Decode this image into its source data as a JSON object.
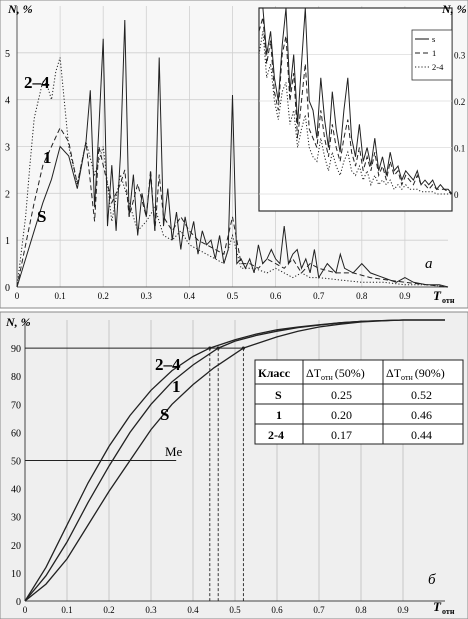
{
  "colors": {
    "panel_a_bg": "#f7f7f7",
    "panel_b_bg": "#efefef",
    "grid_a": "#d0d0d0",
    "grid_b": "#bdbdbd",
    "line": "#222222",
    "border": "#888888"
  },
  "chart_data": [
    {
      "type": "line",
      "panel_label": "a",
      "ylabel": "N, %",
      "ylabel_right": "N, %",
      "xlabel": "T",
      "xlabel_sub": "отн",
      "xlim": [
        0,
        1.0
      ],
      "ylim": [
        0,
        6
      ],
      "x_ticks": [
        "0",
        "0.1",
        "0.2",
        "0.3",
        "0.4",
        "0.5",
        "0.6",
        "0.7",
        "0.8",
        "0.9"
      ],
      "y_ticks": [
        "0",
        "1",
        "2",
        "3",
        "4",
        "5"
      ],
      "grid": true,
      "series_labels_on_chart": [
        "2–4",
        "1",
        "S"
      ],
      "series": [
        {
          "name": "S",
          "style": "solid",
          "x": [
            0,
            0.02,
            0.04,
            0.06,
            0.08,
            0.1,
            0.12,
            0.14,
            0.16,
            0.17,
            0.18,
            0.19,
            0.2,
            0.21,
            0.22,
            0.23,
            0.24,
            0.25,
            0.26,
            0.27,
            0.28,
            0.29,
            0.3,
            0.31,
            0.32,
            0.33,
            0.34,
            0.35,
            0.36,
            0.37,
            0.38,
            0.39,
            0.4,
            0.41,
            0.42,
            0.43,
            0.44,
            0.45,
            0.46,
            0.47,
            0.48,
            0.49,
            0.5,
            0.51,
            0.52,
            0.53,
            0.54,
            0.55,
            0.56,
            0.57,
            0.58,
            0.59,
            0.6,
            0.61,
            0.62,
            0.63,
            0.64,
            0.65,
            0.66,
            0.67,
            0.68,
            0.69,
            0.7,
            0.72,
            0.74,
            0.75,
            0.76,
            0.78,
            0.8,
            0.82,
            0.85,
            0.88,
            0.9,
            0.92,
            0.95,
            0.98,
            1.0
          ],
          "y": [
            0,
            0.6,
            1.2,
            1.8,
            2.3,
            3.0,
            2.8,
            2.1,
            3.1,
            4.2,
            1.7,
            3.4,
            5.3,
            1.3,
            2.6,
            1.2,
            2.8,
            5.7,
            1.5,
            2.4,
            1.1,
            2.0,
            1.5,
            2.4,
            1.2,
            4.9,
            1.3,
            2.1,
            1.0,
            1.6,
            0.8,
            1.5,
            1.0,
            1.4,
            0.7,
            1.2,
            0.9,
            1.0,
            0.6,
            1.1,
            0.5,
            0.8,
            4.1,
            0.5,
            0.6,
            0.4,
            0.6,
            0.3,
            0.9,
            0.5,
            0.6,
            0.8,
            0.6,
            0.5,
            1.3,
            0.5,
            0.7,
            0.8,
            0.4,
            0.6,
            0.3,
            0.8,
            0.2,
            0.5,
            0.3,
            0.7,
            0.4,
            0.3,
            0.5,
            0.3,
            0.2,
            0.1,
            0.2,
            0.1,
            0.05,
            0.05,
            0
          ]
        },
        {
          "name": "1",
          "style": "dashed",
          "x": [
            0,
            0.02,
            0.04,
            0.06,
            0.08,
            0.1,
            0.12,
            0.14,
            0.16,
            0.18,
            0.19,
            0.2,
            0.22,
            0.24,
            0.25,
            0.26,
            0.28,
            0.3,
            0.31,
            0.32,
            0.33,
            0.34,
            0.36,
            0.38,
            0.4,
            0.42,
            0.44,
            0.46,
            0.48,
            0.5,
            0.52,
            0.54,
            0.56,
            0.58,
            0.6,
            0.62,
            0.64,
            0.66,
            0.68,
            0.7,
            0.74,
            0.78,
            0.82,
            0.86,
            0.9,
            0.95,
            1.0
          ],
          "y": [
            0,
            0.9,
            1.8,
            2.6,
            3.0,
            3.4,
            3.1,
            2.2,
            3.1,
            1.4,
            3.0,
            2.6,
            1.8,
            2.2,
            2.5,
            1.5,
            2.2,
            1.5,
            2.5,
            1.2,
            2.4,
            1.5,
            1.2,
            1.5,
            1.2,
            1.0,
            0.9,
            0.8,
            0.7,
            1.5,
            0.5,
            0.5,
            0.4,
            0.6,
            0.5,
            0.4,
            0.6,
            0.3,
            0.5,
            0.4,
            0.3,
            0.3,
            0.2,
            0.15,
            0.1,
            0.05,
            0
          ]
        },
        {
          "name": "2-4",
          "style": "dotted",
          "x": [
            0,
            0.02,
            0.03,
            0.04,
            0.05,
            0.06,
            0.07,
            0.08,
            0.09,
            0.1,
            0.12,
            0.14,
            0.16,
            0.18,
            0.2,
            0.22,
            0.24,
            0.26,
            0.28,
            0.3,
            0.32,
            0.34,
            0.36,
            0.38,
            0.4,
            0.42,
            0.44,
            0.46,
            0.48,
            0.5,
            0.52,
            0.55,
            0.58,
            0.6,
            0.62,
            0.64,
            0.66,
            0.68,
            0.7,
            0.75,
            0.8,
            0.85,
            0.9,
            0.95,
            1.0
          ],
          "y": [
            0,
            1.5,
            2.6,
            3.6,
            4.0,
            4.4,
            4.3,
            4.0,
            4.6,
            4.9,
            3.0,
            2.2,
            3.1,
            2.4,
            3.0,
            1.4,
            2.4,
            1.8,
            1.2,
            1.4,
            1.7,
            1.1,
            1.0,
            1.2,
            0.9,
            0.8,
            0.7,
            0.6,
            0.5,
            1.1,
            0.4,
            0.4,
            0.3,
            0.4,
            0.3,
            0.2,
            0.3,
            0.2,
            0.2,
            0.15,
            0.1,
            0.1,
            0.05,
            0.05,
            0
          ]
        }
      ],
      "inset": {
        "ylabel": "N, %",
        "y_ticks": [
          "0",
          "0.1",
          "0.2",
          "0.3"
        ],
        "ylim": [
          0,
          0.4
        ],
        "legend": [
          "s",
          "1",
          "2-4"
        ],
        "legend_position": "top-right",
        "series": [
          {
            "name": "s",
            "style": "solid",
            "x": [
              0,
              0.02,
              0.04,
              0.06,
              0.08,
              0.1,
              0.12,
              0.14,
              0.16,
              0.18,
              0.2,
              0.22,
              0.24,
              0.26,
              0.28,
              0.3,
              0.32,
              0.34,
              0.36,
              0.38,
              0.4,
              0.42,
              0.44,
              0.46,
              0.48,
              0.5,
              0.52,
              0.54,
              0.56,
              0.58,
              0.6,
              0.62,
              0.64,
              0.66,
              0.68,
              0.7,
              0.72,
              0.74,
              0.76,
              0.78,
              0.8,
              0.82,
              0.84,
              0.86,
              0.88,
              0.9,
              0.92,
              0.94,
              0.96,
              0.98,
              1.0
            ],
            "y": [
              0.4,
              0.4,
              0.3,
              0.35,
              0.25,
              0.2,
              0.32,
              0.4,
              0.22,
              0.3,
              0.15,
              0.28,
              0.4,
              0.2,
              0.18,
              0.12,
              0.25,
              0.16,
              0.1,
              0.22,
              0.14,
              0.09,
              0.18,
              0.25,
              0.12,
              0.08,
              0.15,
              0.07,
              0.1,
              0.06,
              0.12,
              0.05,
              0.08,
              0.04,
              0.09,
              0.05,
              0.06,
              0.03,
              0.05,
              0.04,
              0.03,
              0.05,
              0.02,
              0.03,
              0.02,
              0.03,
              0.01,
              0.02,
              0.01,
              0.01,
              0
            ]
          },
          {
            "name": "1",
            "style": "dashed",
            "x": [
              0,
              0.02,
              0.04,
              0.06,
              0.08,
              0.1,
              0.12,
              0.14,
              0.16,
              0.18,
              0.2,
              0.22,
              0.24,
              0.26,
              0.28,
              0.3,
              0.32,
              0.34,
              0.36,
              0.38,
              0.4,
              0.42,
              0.44,
              0.46,
              0.48,
              0.5,
              0.52,
              0.54,
              0.56,
              0.58,
              0.6,
              0.62,
              0.64,
              0.66,
              0.68,
              0.7,
              0.72,
              0.74,
              0.76,
              0.78,
              0.8,
              0.82,
              0.84,
              0.86,
              0.88,
              0.9,
              0.92,
              0.94,
              0.96,
              0.98,
              1.0
            ],
            "y": [
              0.35,
              0.38,
              0.28,
              0.33,
              0.22,
              0.18,
              0.3,
              0.34,
              0.2,
              0.26,
              0.12,
              0.2,
              0.28,
              0.14,
              0.12,
              0.1,
              0.18,
              0.12,
              0.08,
              0.15,
              0.1,
              0.07,
              0.12,
              0.16,
              0.09,
              0.06,
              0.1,
              0.05,
              0.08,
              0.05,
              0.09,
              0.04,
              0.06,
              0.03,
              0.07,
              0.04,
              0.05,
              0.02,
              0.04,
              0.03,
              0.02,
              0.04,
              0.02,
              0.02,
              0.01,
              0.02,
              0.01,
              0.01,
              0.01,
              0.005,
              0
            ]
          },
          {
            "name": "2-4",
            "style": "dotted",
            "x": [
              0,
              0.02,
              0.04,
              0.06,
              0.08,
              0.1,
              0.12,
              0.14,
              0.16,
              0.18,
              0.2,
              0.22,
              0.24,
              0.26,
              0.28,
              0.3,
              0.32,
              0.34,
              0.36,
              0.38,
              0.4,
              0.42,
              0.44,
              0.46,
              0.48,
              0.5,
              0.52,
              0.54,
              0.56,
              0.58,
              0.6,
              0.62,
              0.64,
              0.66,
              0.68,
              0.7,
              0.72,
              0.74,
              0.76,
              0.78,
              0.8,
              0.82,
              0.84,
              0.86,
              0.88,
              0.9,
              0.92,
              0.94,
              0.96,
              0.98,
              1.0
            ],
            "y": [
              0.3,
              0.35,
              0.25,
              0.28,
              0.2,
              0.16,
              0.22,
              0.24,
              0.15,
              0.18,
              0.1,
              0.14,
              0.17,
              0.1,
              0.08,
              0.07,
              0.12,
              0.08,
              0.05,
              0.09,
              0.06,
              0.04,
              0.07,
              0.09,
              0.05,
              0.04,
              0.06,
              0.03,
              0.05,
              0.02,
              0.04,
              0.02,
              0.03,
              0.02,
              0.03,
              0.01,
              0.02,
              0.01,
              0.02,
              0.01,
              0.01,
              0.01,
              0.005,
              0.005,
              0.005,
              0.005,
              0,
              0,
              0,
              0,
              0
            ]
          }
        ]
      }
    },
    {
      "type": "line",
      "panel_label": "б",
      "ylabel": "N, %",
      "xlabel": "T",
      "xlabel_sub": "отн",
      "xlim": [
        0,
        1.0
      ],
      "ylim": [
        0,
        100
      ],
      "x_ticks": [
        "0",
        "0.1",
        "0.2",
        "0.3",
        "0.4",
        "0.5",
        "0.6",
        "0.7",
        "0.8",
        "0.9"
      ],
      "y_ticks": [
        "0",
        "10",
        "20",
        "30",
        "40",
        "50",
        "60",
        "70",
        "80",
        "90"
      ],
      "grid": true,
      "reference_lines": {
        "y90_label": "",
        "median_label": "Me",
        "median_y": 50,
        "top_y": 90
      },
      "series_labels_on_chart": [
        "2–4",
        "1",
        "S"
      ],
      "series": [
        {
          "name": "2-4",
          "x": [
            0,
            0.05,
            0.1,
            0.15,
            0.2,
            0.25,
            0.3,
            0.35,
            0.4,
            0.44,
            0.5,
            0.55,
            0.6,
            0.65,
            0.7,
            0.75,
            0.8,
            0.85,
            0.9,
            0.95,
            1.0
          ],
          "y": [
            0,
            12,
            27,
            42,
            55,
            66,
            75,
            82,
            87,
            90,
            93,
            95,
            96.5,
            97.5,
            98.3,
            99,
            99.5,
            99.8,
            100,
            100,
            100
          ]
        },
        {
          "name": "1",
          "x": [
            0,
            0.05,
            0.1,
            0.15,
            0.2,
            0.25,
            0.3,
            0.35,
            0.4,
            0.46,
            0.5,
            0.55,
            0.6,
            0.65,
            0.7,
            0.75,
            0.8,
            0.85,
            0.9,
            0.95,
            1.0
          ],
          "y": [
            0,
            9,
            21,
            35,
            48,
            60,
            70,
            78,
            84,
            90,
            92.5,
            94.5,
            96,
            97.3,
            98.2,
            99,
            99.5,
            99.8,
            100,
            100,
            100
          ]
        },
        {
          "name": "S",
          "x": [
            0,
            0.05,
            0.1,
            0.15,
            0.2,
            0.25,
            0.3,
            0.35,
            0.4,
            0.45,
            0.52,
            0.55,
            0.6,
            0.65,
            0.7,
            0.75,
            0.8,
            0.85,
            0.9,
            0.95,
            1.0
          ],
          "y": [
            0,
            6,
            15,
            27,
            39,
            50,
            61,
            70,
            77,
            83,
            90,
            91.5,
            94,
            96,
            97.5,
            98.5,
            99.3,
            99.7,
            100,
            100,
            100
          ]
        }
      ],
      "crossings_90": [
        0.44,
        0.46,
        0.52
      ],
      "table": {
        "headers": [
          "Класс",
          "ΔT",
          "(50%)",
          "ΔT",
          "(90%)"
        ],
        "header_sub": "отн",
        "rows": [
          [
            "S",
            "0.25",
            "0.52"
          ],
          [
            "1",
            "0.20",
            "0.46"
          ],
          [
            "2-4",
            "0.17",
            "0.44"
          ]
        ]
      }
    }
  ]
}
